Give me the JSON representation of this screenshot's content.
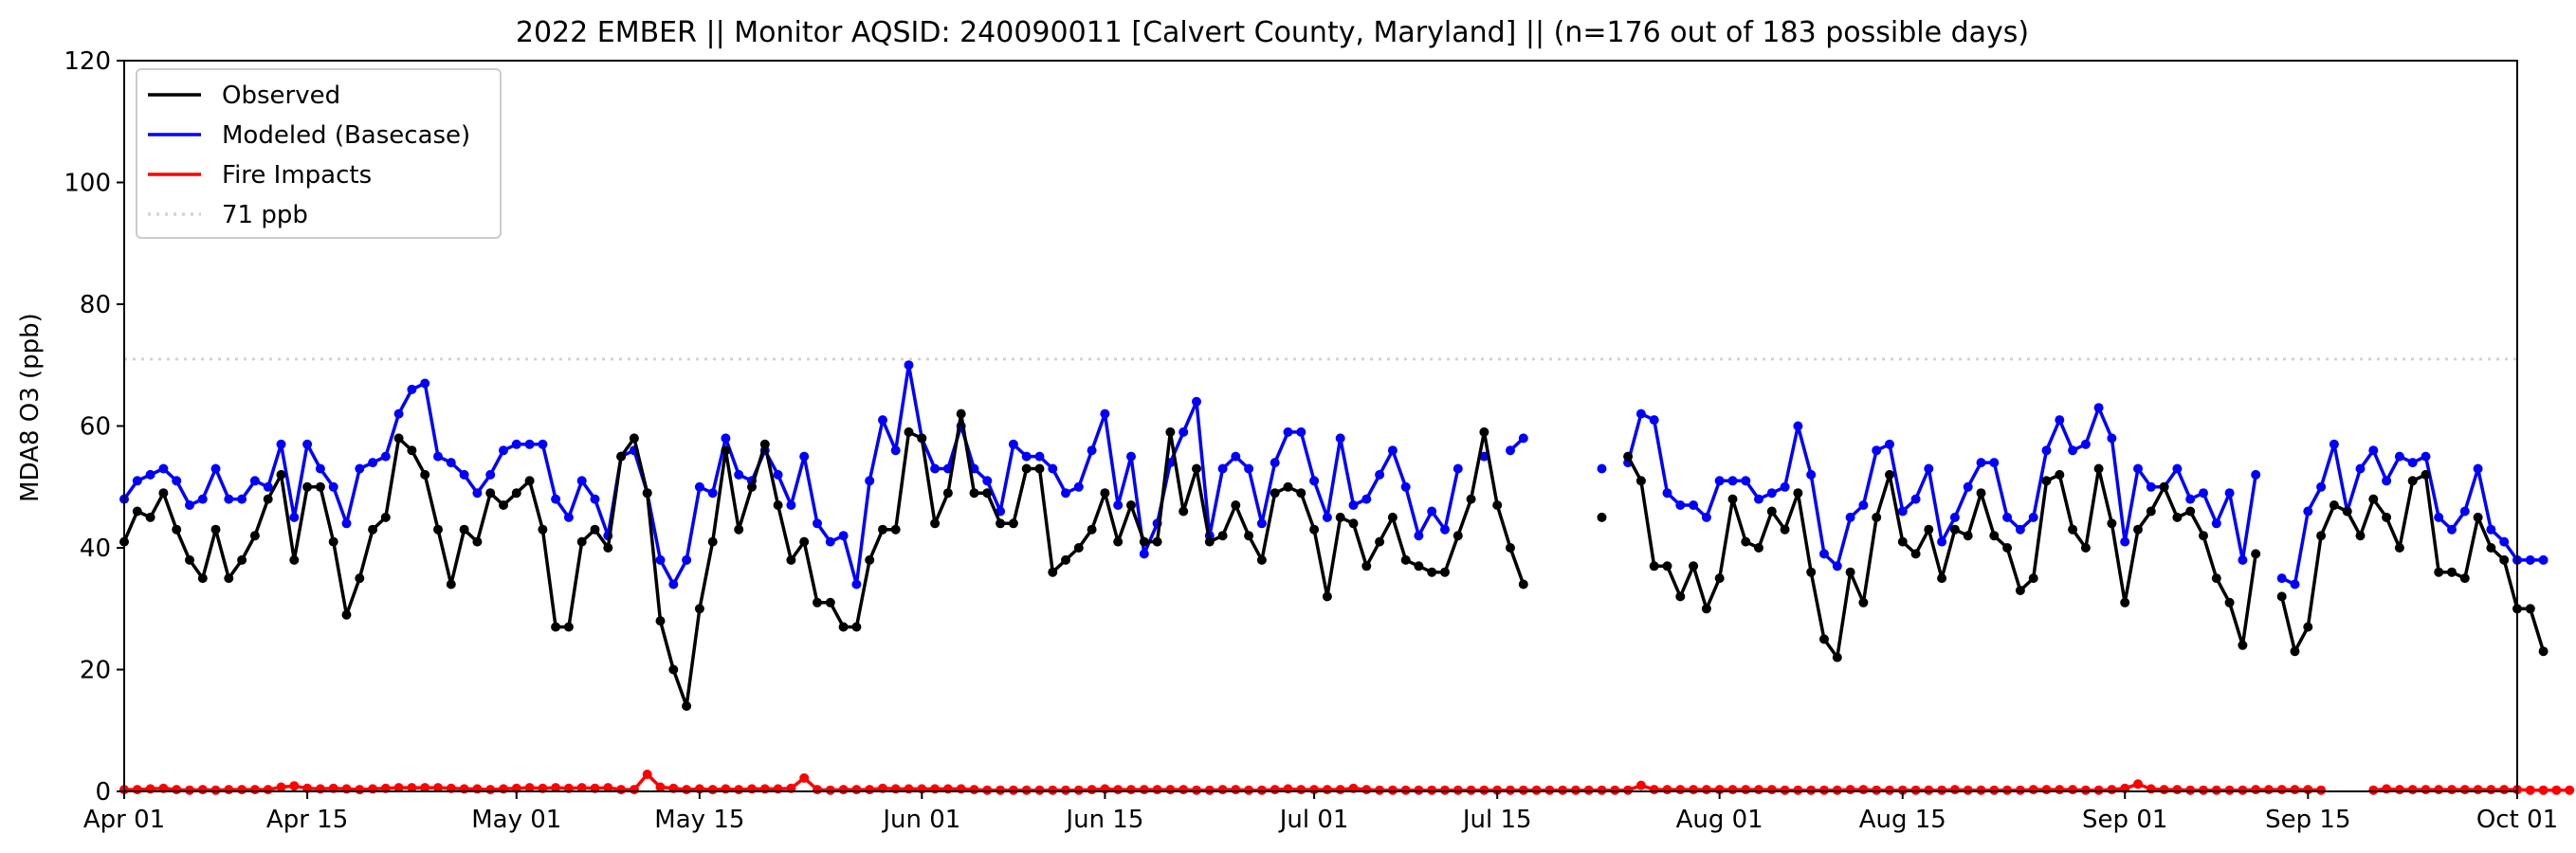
{
  "chart_data": {
    "type": "line",
    "title": "2022 EMBER || Monitor AQSID: 240090011 [Calvert County, Maryland] || (n=176 out of 183 possible days)",
    "xlabel": "",
    "ylabel": "MDA8 O3 (ppb)",
    "ylim": [
      0,
      120
    ],
    "yticks": [
      0,
      20,
      40,
      60,
      80,
      100,
      120
    ],
    "x_start": "2022-04-01",
    "xlim": [
      "2022-04-01",
      "2022-10-01"
    ],
    "xticks": [
      {
        "date": "2022-04-01",
        "label": "Apr 01"
      },
      {
        "date": "2022-04-15",
        "label": "Apr 15"
      },
      {
        "date": "2022-05-01",
        "label": "May 01"
      },
      {
        "date": "2022-05-15",
        "label": "May 15"
      },
      {
        "date": "2022-06-01",
        "label": "Jun 01"
      },
      {
        "date": "2022-06-15",
        "label": "Jun 15"
      },
      {
        "date": "2022-07-01",
        "label": "Jul 01"
      },
      {
        "date": "2022-07-15",
        "label": "Jul 15"
      },
      {
        "date": "2022-08-01",
        "label": "Aug 01"
      },
      {
        "date": "2022-08-15",
        "label": "Aug 15"
      },
      {
        "date": "2022-09-01",
        "label": "Sep 01"
      },
      {
        "date": "2022-09-15",
        "label": "Sep 15"
      },
      {
        "date": "2022-10-01",
        "label": "Oct 01"
      }
    ],
    "legend_position": "top-left",
    "grid": false,
    "reference_line": {
      "name": "71 ppb",
      "value": 71,
      "color": "#d3d3d3",
      "style": "dotted"
    },
    "series": [
      {
        "name": "Observed",
        "color": "#000000",
        "values": [
          41,
          46,
          45,
          49,
          43,
          38,
          35,
          43,
          35,
          38,
          42,
          48,
          52,
          38,
          50,
          50,
          41,
          29,
          35,
          43,
          45,
          58,
          56,
          52,
          43,
          34,
          43,
          41,
          49,
          47,
          49,
          51,
          43,
          27,
          27,
          41,
          43,
          40,
          55,
          58,
          49,
          28,
          20,
          14,
          30,
          41,
          56,
          43,
          50,
          57,
          47,
          38,
          41,
          31,
          31,
          27,
          27,
          38,
          43,
          43,
          59,
          58,
          44,
          49,
          62,
          49,
          49,
          44,
          44,
          53,
          53,
          36,
          38,
          40,
          43,
          49,
          41,
          47,
          41,
          41,
          59,
          46,
          53,
          41,
          42,
          47,
          42,
          38,
          49,
          50,
          49,
          43,
          32,
          45,
          44,
          37,
          41,
          45,
          38,
          37,
          36,
          36,
          42,
          48,
          59,
          47,
          40,
          34,
          null,
          null,
          null,
          null,
          null,
          45,
          null,
          55,
          51,
          37,
          37,
          32,
          37,
          30,
          35,
          48,
          41,
          40,
          46,
          43,
          49,
          36,
          25,
          22,
          36,
          31,
          45,
          52,
          41,
          39,
          43,
          35,
          43,
          42,
          49,
          42,
          40,
          33,
          35,
          51,
          52,
          43,
          40,
          53,
          44,
          31,
          43,
          46,
          50,
          45,
          46,
          42,
          35,
          31,
          24,
          39,
          null,
          32,
          23,
          27,
          42,
          47,
          46,
          42,
          48,
          45,
          40,
          51,
          52,
          36,
          36,
          35,
          45,
          40,
          38,
          30,
          30,
          23
        ],
        "fire_note": null
      },
      {
        "name": "Modeled (Basecase)",
        "color": "#0000ff",
        "values": [
          48,
          51,
          52,
          53,
          51,
          47,
          48,
          53,
          48,
          48,
          51,
          50,
          57,
          45,
          57,
          53,
          50,
          44,
          53,
          54,
          55,
          62,
          66,
          67,
          55,
          54,
          52,
          49,
          52,
          56,
          57,
          57,
          57,
          48,
          45,
          51,
          48,
          42,
          55,
          56,
          49,
          38,
          34,
          38,
          50,
          49,
          58,
          52,
          51,
          56,
          52,
          47,
          55,
          44,
          41,
          42,
          34,
          51,
          61,
          56,
          70,
          58,
          53,
          53,
          60,
          53,
          51,
          46,
          57,
          55,
          55,
          53,
          49,
          50,
          56,
          62,
          47,
          55,
          39,
          44,
          54,
          59,
          64,
          42,
          53,
          55,
          53,
          44,
          54,
          59,
          59,
          51,
          45,
          58,
          47,
          48,
          52,
          56,
          50,
          42,
          46,
          43,
          53,
          null,
          55,
          null,
          56,
          58,
          null,
          null,
          null,
          null,
          null,
          53,
          null,
          54,
          62,
          61,
          49,
          47,
          47,
          45,
          51,
          51,
          51,
          48,
          49,
          50,
          60,
          52,
          39,
          37,
          45,
          47,
          56,
          57,
          46,
          48,
          53,
          41,
          45,
          50,
          54,
          54,
          45,
          43,
          45,
          56,
          61,
          56,
          57,
          63,
          58,
          41,
          53,
          50,
          50,
          53,
          48,
          49,
          44,
          49,
          38,
          52,
          null,
          35,
          34,
          46,
          50,
          57,
          46,
          53,
          56,
          51,
          55,
          54,
          55,
          45,
          43,
          46,
          53,
          43,
          41,
          38,
          38,
          38
        ]
      },
      {
        "name": "Fire Impacts",
        "color": "#ff0000",
        "values": [
          0.3,
          0.3,
          0.4,
          0.5,
          0.3,
          0.2,
          0.3,
          0.2,
          0.3,
          0.3,
          0.3,
          0.3,
          0.7,
          0.9,
          0.5,
          0.4,
          0.5,
          0.4,
          0.3,
          0.4,
          0.5,
          0.6,
          0.6,
          0.6,
          0.6,
          0.5,
          0.4,
          0.4,
          0.3,
          0.4,
          0.5,
          0.6,
          0.5,
          0.6,
          0.5,
          0.6,
          0.5,
          0.6,
          0.3,
          0.3,
          2.8,
          0.7,
          0.5,
          0.3,
          0.4,
          0.3,
          0.4,
          0.3,
          0.4,
          0.4,
          0.4,
          0.5,
          2.2,
          0.3,
          0.2,
          0.3,
          0.3,
          0.3,
          0.5,
          0.4,
          0.4,
          0.4,
          0.4,
          0.4,
          0.4,
          0.3,
          0.2,
          0.2,
          0.2,
          0.2,
          0.2,
          0.2,
          0.2,
          0.2,
          0.3,
          0.4,
          0.3,
          0.3,
          0.3,
          0.3,
          0.3,
          0.3,
          0.2,
          0.2,
          0.3,
          0.3,
          0.2,
          0.2,
          0.3,
          0.4,
          0.3,
          0.3,
          0.3,
          0.3,
          0.5,
          0.3,
          0.2,
          0.2,
          0.2,
          0.2,
          0.2,
          0.2,
          0.2,
          0.2,
          0.2,
          0.2,
          0.2,
          0.2,
          0.2,
          0.2,
          0.2,
          0.2,
          0.2,
          0.2,
          0.2,
          0.2,
          1.0,
          0.3,
          0.3,
          0.3,
          0.3,
          0.3,
          0.3,
          0.3,
          0.3,
          0.3,
          0.3,
          0.2,
          0.2,
          0.2,
          0.2,
          0.2,
          0.3,
          0.3,
          0.2,
          0.2,
          0.2,
          0.2,
          0.2,
          0.2,
          0.3,
          0.2,
          0.2,
          0.2,
          0.2,
          0.2,
          0.3,
          0.3,
          0.3,
          0.3,
          0.2,
          0.2,
          0.3,
          0.5,
          1.2,
          0.4,
          0.3,
          0.3,
          0.2,
          0.2,
          0.2,
          0.2,
          0.2,
          0.3,
          0.3,
          0.3,
          0.3,
          0.3,
          0.2,
          null,
          null,
          null,
          0.2,
          0.4,
          0.3,
          0.3,
          0.3,
          0.3,
          0.3,
          0.3,
          0.3,
          0.3,
          0.3,
          0.3,
          0.2,
          0.2,
          0.2,
          0.2
        ]
      }
    ]
  }
}
